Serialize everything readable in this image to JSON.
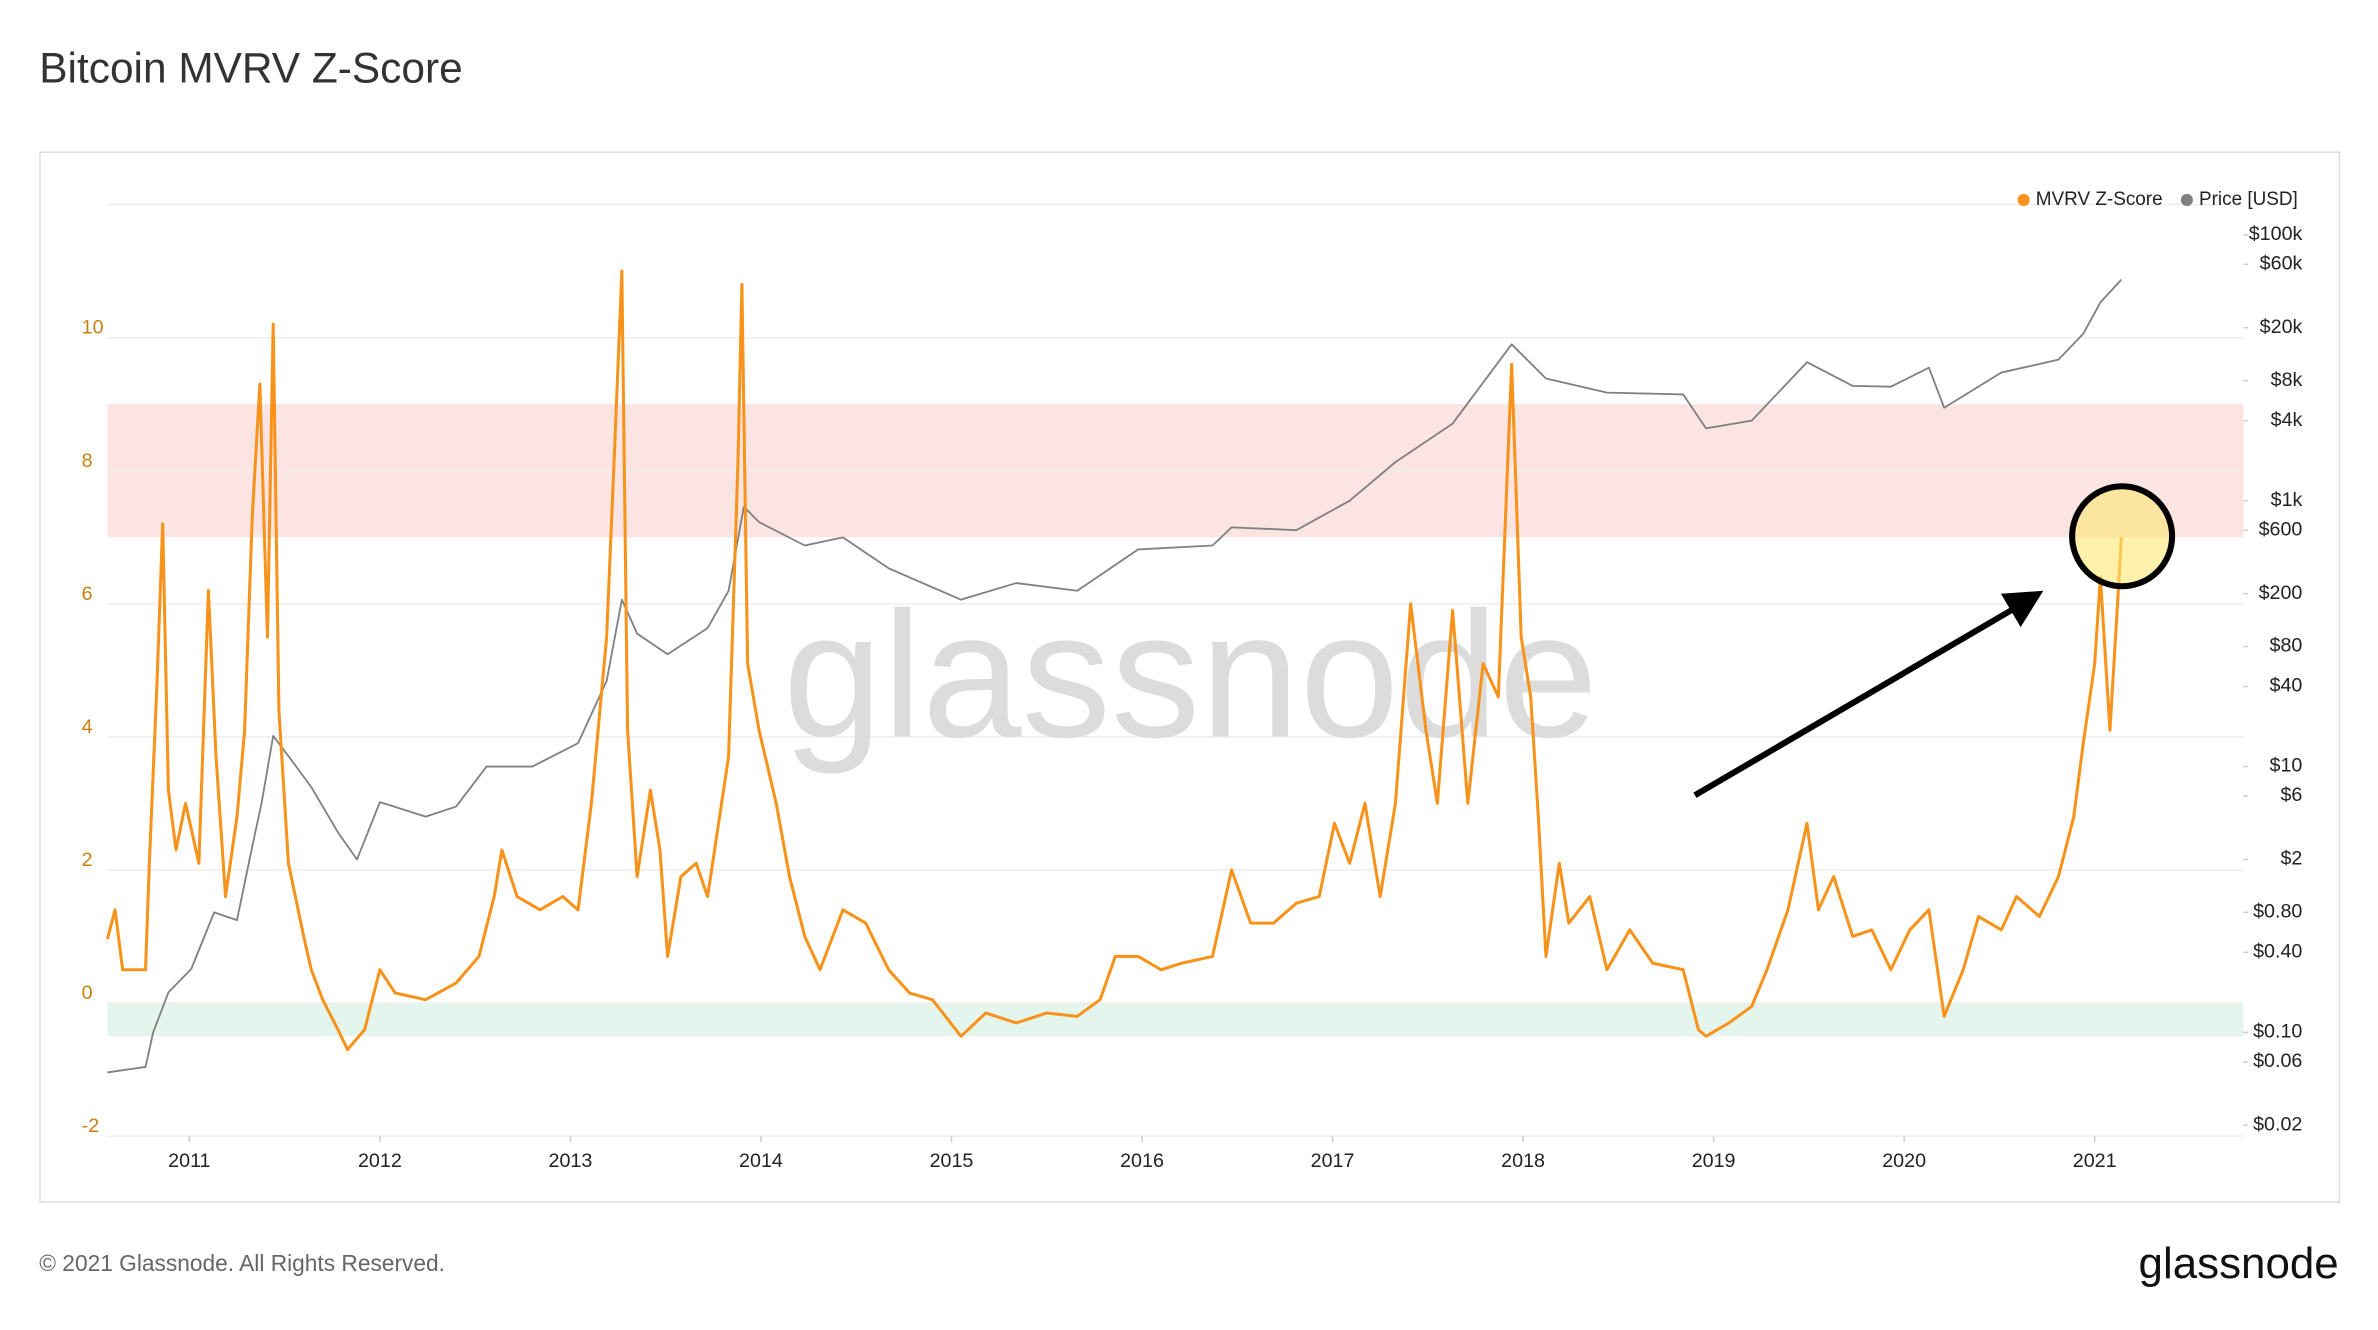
{
  "chart_data": {
    "type": "line",
    "title": "Bitcoin MVRV Z-Score",
    "watermark": "glassnode",
    "footer": "© 2021 Glassnode. All Rights Reserved.",
    "logo": "glassnode",
    "xlim": [
      2010.57,
      2021.78
    ],
    "xticks": [
      2011,
      2012,
      2013,
      2014,
      2015,
      2016,
      2017,
      2018,
      2019,
      2020,
      2021
    ],
    "ylim": [
      -2,
      12
    ],
    "yticks": [
      -2,
      0,
      2,
      4,
      6,
      8,
      10
    ],
    "y2lim": [
      0.0166,
      169000
    ],
    "y2scale": "log",
    "y2ticks": [
      {
        "value": 100000,
        "label": "$100k"
      },
      {
        "value": 60000,
        "label": "$60k"
      },
      {
        "value": 20000,
        "label": "$20k"
      },
      {
        "value": 8000,
        "label": "$8k"
      },
      {
        "value": 4000,
        "label": "$4k"
      },
      {
        "value": 1000,
        "label": "$1k"
      },
      {
        "value": 600,
        "label": "$600"
      },
      {
        "value": 200,
        "label": "$200"
      },
      {
        "value": 80,
        "label": "$80"
      },
      {
        "value": 40,
        "label": "$40"
      },
      {
        "value": 10,
        "label": "$10"
      },
      {
        "value": 6,
        "label": "$6"
      },
      {
        "value": 2,
        "label": "$2"
      },
      {
        "value": 0.8,
        "label": "$0.80"
      },
      {
        "value": 0.4,
        "label": "$0.40"
      },
      {
        "value": 0.1,
        "label": "$0.10"
      },
      {
        "value": 0.06,
        "label": "$0.06"
      },
      {
        "value": 0.02,
        "label": "$0.02"
      }
    ],
    "grid": true,
    "legend": "top-right",
    "bands": [
      {
        "from": 7,
        "to": 9,
        "color": "#fbe4e2"
      },
      {
        "from": -0.5,
        "to": 0,
        "color": "#e4f5ee"
      }
    ],
    "series": [
      {
        "name": "MVRV Z-Score",
        "color": "#f7931a",
        "axis": "y",
        "x": [
          2010.57,
          2010.61,
          2010.65,
          2010.77,
          2010.79,
          2010.83,
          2010.86,
          2010.89,
          2010.93,
          2010.98,
          2011.05,
          2011.1,
          2011.14,
          2011.19,
          2011.25,
          2011.29,
          2011.33,
          2011.37,
          2011.41,
          2011.44,
          2011.47,
          2011.52,
          2011.6,
          2011.64,
          2011.7,
          2011.78,
          2011.83,
          2011.92,
          2012.0,
          2012.08,
          2012.24,
          2012.4,
          2012.52,
          2012.6,
          2012.64,
          2012.72,
          2012.84,
          2012.96,
          2013.04,
          2013.11,
          2013.19,
          2013.23,
          2013.27,
          2013.3,
          2013.35,
          2013.42,
          2013.47,
          2013.51,
          2013.58,
          2013.66,
          2013.72,
          2013.83,
          2013.88,
          2013.9,
          2013.93,
          2013.99,
          2014.08,
          2014.15,
          2014.23,
          2014.31,
          2014.43,
          2014.55,
          2014.67,
          2014.78,
          2014.9,
          2015.05,
          2015.18,
          2015.34,
          2015.5,
          2015.66,
          2015.78,
          2015.86,
          2015.98,
          2016.1,
          2016.21,
          2016.37,
          2016.47,
          2016.57,
          2016.69,
          2016.81,
          2016.93,
          2017.01,
          2017.09,
          2017.17,
          2017.25,
          2017.33,
          2017.41,
          2017.49,
          2017.55,
          2017.63,
          2017.71,
          2017.79,
          2017.87,
          2017.94,
          2017.99,
          2018.04,
          2018.08,
          2018.12,
          2018.19,
          2018.24,
          2018.35,
          2018.44,
          2018.56,
          2018.68,
          2018.84,
          2018.92,
          2018.96,
          2019.08,
          2019.2,
          2019.28,
          2019.39,
          2019.49,
          2019.55,
          2019.63,
          2019.73,
          2019.83,
          2019.93,
          2020.03,
          2020.13,
          2020.21,
          2020.31,
          2020.39,
          2020.51,
          2020.59,
          2020.71,
          2020.81,
          2020.89,
          2020.94,
          2021.0,
          2021.03,
          2021.08,
          2021.12,
          2021.14
        ],
        "values": [
          0.96,
          1.4,
          0.5,
          0.5,
          2.1,
          4.8,
          7.2,
          3.2,
          2.3,
          3.0,
          2.1,
          6.2,
          3.7,
          1.6,
          2.8,
          4.1,
          7.3,
          9.3,
          5.5,
          10.2,
          4.4,
          2.1,
          1.0,
          0.5,
          0.05,
          -0.4,
          -0.7,
          -0.4,
          0.5,
          0.15,
          0.05,
          0.3,
          0.7,
          1.6,
          2.3,
          1.6,
          1.4,
          1.6,
          1.4,
          3.0,
          5.5,
          8.2,
          11.0,
          4.1,
          1.9,
          3.2,
          2.3,
          0.7,
          1.9,
          2.1,
          1.6,
          3.7,
          8.2,
          10.8,
          5.1,
          4.1,
          3.0,
          1.9,
          1.0,
          0.5,
          1.4,
          1.2,
          0.5,
          0.15,
          0.05,
          -0.5,
          -0.15,
          -0.3,
          -0.15,
          -0.2,
          0.05,
          0.7,
          0.7,
          0.5,
          0.6,
          0.7,
          2.0,
          1.2,
          1.2,
          1.5,
          1.6,
          2.7,
          2.1,
          3.0,
          1.6,
          3.0,
          6.0,
          4.1,
          3.0,
          5.9,
          3.0,
          5.1,
          4.6,
          9.6,
          5.5,
          4.6,
          2.8,
          0.7,
          2.1,
          1.2,
          1.6,
          0.5,
          1.1,
          0.6,
          0.5,
          -0.4,
          -0.5,
          -0.3,
          -0.05,
          0.5,
          1.4,
          2.7,
          1.4,
          1.9,
          1.0,
          1.1,
          0.5,
          1.1,
          1.4,
          -0.2,
          0.5,
          1.3,
          1.1,
          1.6,
          1.3,
          1.9,
          2.8,
          3.9,
          5.1,
          6.4,
          4.1,
          6.0,
          7.0
        ]
      },
      {
        "name": "Price [USD]",
        "color": "#808080",
        "axis": "y2",
        "x": [
          2010.57,
          2010.77,
          2010.81,
          2010.89,
          2011.01,
          2011.13,
          2011.25,
          2011.33,
          2011.38,
          2011.44,
          2011.52,
          2011.64,
          2011.78,
          2011.88,
          2012.0,
          2012.24,
          2012.4,
          2012.56,
          2012.8,
          2013.04,
          2013.19,
          2013.27,
          2013.35,
          2013.51,
          2013.72,
          2013.83,
          2013.91,
          2013.99,
          2014.23,
          2014.43,
          2014.67,
          2015.05,
          2015.34,
          2015.66,
          2015.98,
          2016.37,
          2016.47,
          2016.81,
          2017.09,
          2017.33,
          2017.63,
          2017.94,
          2018.12,
          2018.44,
          2018.84,
          2018.96,
          2019.2,
          2019.49,
          2019.73,
          2019.93,
          2020.13,
          2020.21,
          2020.51,
          2020.81,
          2020.94,
          2021.03,
          2021.14
        ],
        "values": [
          0.05,
          0.055,
          0.1,
          0.2,
          0.3,
          0.8,
          0.7,
          2.5,
          5.4,
          17,
          12,
          7,
          3.2,
          2,
          5.4,
          4.2,
          5,
          10,
          10,
          15,
          44,
          180,
          100,
          70,
          110,
          210,
          900,
          690,
          460,
          530,
          310,
          180,
          240,
          210,
          430,
          460,
          630,
          600,
          1000,
          1950,
          3800,
          15000,
          8300,
          6500,
          6300,
          3500,
          4000,
          11000,
          7300,
          7200,
          10000,
          5000,
          9200,
          11500,
          18000,
          31000,
          46000
        ]
      }
    ]
  }
}
